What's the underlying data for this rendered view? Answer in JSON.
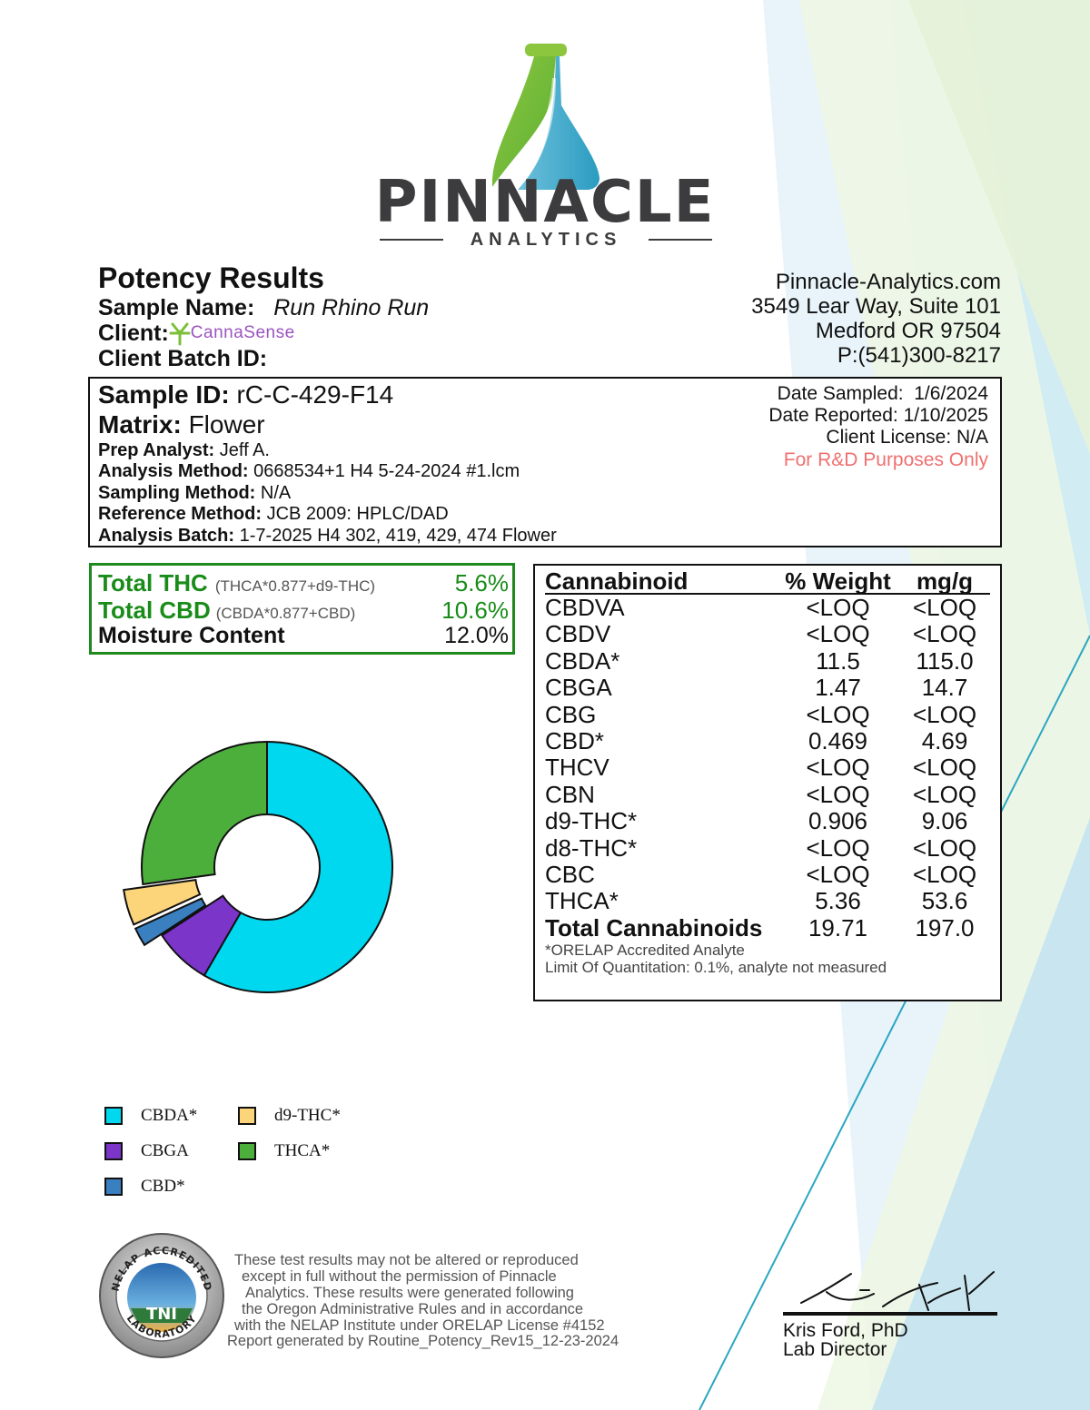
{
  "logo": {
    "name": "PINNACLE",
    "tagline": "ANALYTICS"
  },
  "report": {
    "title": "Potency Results",
    "sample_name_label": "Sample Name:",
    "sample_name": "Run Rhino Run",
    "client_label": "Client:",
    "client_logo_text": "CannaSense",
    "client_batch_label": "Client Batch ID:"
  },
  "lab": {
    "website": "Pinnacle-Analytics.com",
    "address1": "3549 Lear Way, Suite 101",
    "address2": "Medford OR 97504",
    "phone": "P:(541)300-8217"
  },
  "sample": {
    "id_label": "Sample ID:",
    "id": "rC-C-429-F14",
    "matrix_label": "Matrix:",
    "matrix": "Flower",
    "prep_analyst_label": "Prep Analyst:",
    "prep_analyst": "Jeff A.",
    "analysis_method_label": "Analysis Method:",
    "analysis_method": "0668534+1 H4 5-24-2024 #1.lcm",
    "sampling_method_label": "Sampling Method:",
    "sampling_method": "N/A",
    "reference_method_label": "Reference Method:",
    "reference_method": "JCB 2009: HPLC/DAD",
    "analysis_batch_label": "Analysis Batch:",
    "analysis_batch": "1-7-2025 H4 302, 419, 429, 474 Flower",
    "date_sampled": "Date Sampled:  1/6/2024",
    "date_reported": "Date Reported: 1/10/2025",
    "client_license": "Client License: N/A",
    "purpose_note": "For R&D Purposes Only"
  },
  "summary": {
    "thc_label": "Total THC",
    "thc_formula": "(THCA*0.877+d9-THC)",
    "thc_value": "5.6%",
    "cbd_label": "Total CBD",
    "cbd_formula": "(CBDA*0.877+CBD)",
    "cbd_value": "10.6%",
    "moisture_label": "Moisture Content",
    "moisture_value": "12.0%"
  },
  "table": {
    "headers": [
      "Cannabinoid",
      "% Weight",
      "mg/g"
    ],
    "rows": [
      [
        "CBDVA",
        "<LOQ",
        "<LOQ"
      ],
      [
        "CBDV",
        "<LOQ",
        "<LOQ"
      ],
      [
        "CBDA*",
        "11.5",
        "115.0"
      ],
      [
        "CBGA",
        "1.47",
        "14.7"
      ],
      [
        "CBG",
        "<LOQ",
        "<LOQ"
      ],
      [
        "CBD*",
        "0.469",
        "4.69"
      ],
      [
        "THCV",
        "<LOQ",
        "<LOQ"
      ],
      [
        "CBN",
        "<LOQ",
        "<LOQ"
      ],
      [
        "d9-THC*",
        "0.906",
        "9.06"
      ],
      [
        "d8-THC*",
        "<LOQ",
        "<LOQ"
      ],
      [
        "CBC",
        "<LOQ",
        "<LOQ"
      ],
      [
        "THCA*",
        "5.36",
        "53.6"
      ]
    ],
    "total": [
      "Total Cannabinoids",
      "19.71",
      "197.0"
    ],
    "footnote1": "*ORELAP Accredited Analyte",
    "footnote2": "Limit Of Quantitation: 0.1%, analyte not measured"
  },
  "chart_data": {
    "type": "pie",
    "title": "",
    "style": "donut",
    "labels": [
      "CBDA*",
      "CBGA",
      "CBD*",
      "d9-THC*",
      "THCA*"
    ],
    "values": [
      11.5,
      1.47,
      0.469,
      0.906,
      5.36
    ],
    "colors": [
      "#00d8f0",
      "#7b35c8",
      "#3a80c0",
      "#fcd47a",
      "#4caf3c"
    ],
    "exploded": [
      "CBD*",
      "d9-THC*"
    ],
    "legend_position": "bottom-left"
  },
  "accreditation": {
    "seal_text_top": "NELAP ACCREDITED",
    "seal_text_bottom": "LABORATORY",
    "seal_center": "TNI",
    "disclaimer": [
      "These test results may not be altered or reproduced",
      "except in full without the permission of Pinnacle",
      "Analytics. These results were generated following",
      "the Oregon Administrative Rules and in accordance",
      "with the NELAP Institute under ORELAP License #4152",
      "Report generated by Routine_Potency_Rev15_12-23-2024"
    ]
  },
  "signature": {
    "name": "Kris Ford, PhD",
    "title": "Lab Director"
  },
  "colors": {
    "brand_green": "#8cc63f",
    "brand_teal": "#3ab0c8",
    "summary_green": "#198c19",
    "note_red": "#f07070"
  }
}
